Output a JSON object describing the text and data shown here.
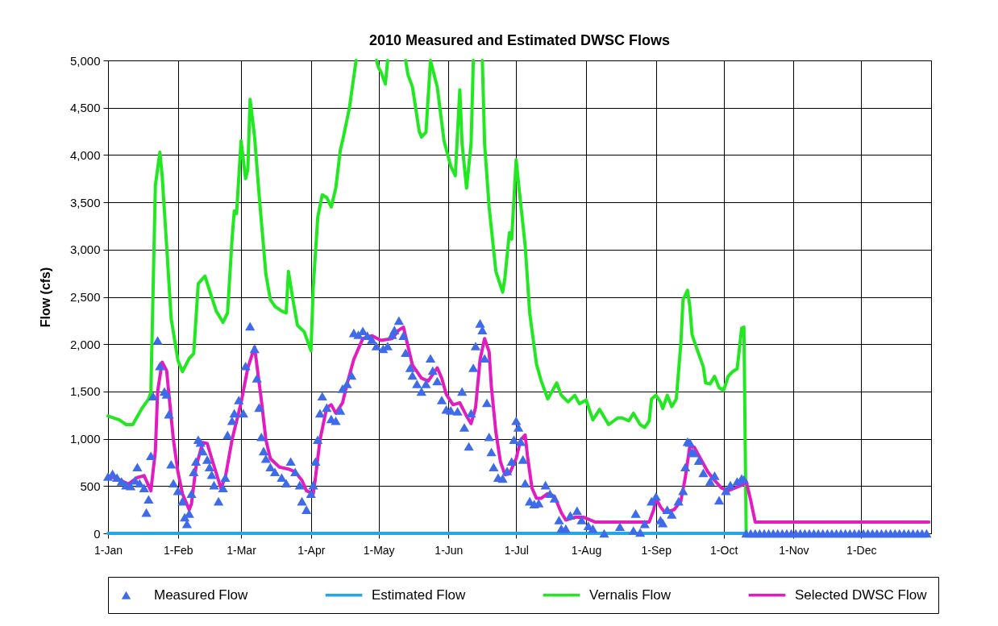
{
  "chart_data": {
    "type": "line",
    "title": "2010 Measured and Estimated DWSC Flows",
    "ylabel": "Flow (cfs)",
    "xlim": [
      "2010-01-01",
      "2011-01-01"
    ],
    "xticks": [
      {
        "value": "2010-01-01",
        "label": "1-Jan"
      },
      {
        "value": "2010-02-01",
        "label": "1-Feb"
      },
      {
        "value": "2010-03-01",
        "label": "1-Mar"
      },
      {
        "value": "2010-04-01",
        "label": "1-Apr"
      },
      {
        "value": "2010-05-01",
        "label": "1-May"
      },
      {
        "value": "2010-06-01",
        "label": "1-Jun"
      },
      {
        "value": "2010-07-01",
        "label": "1-Jul"
      },
      {
        "value": "2010-08-01",
        "label": "1-Aug"
      },
      {
        "value": "2010-09-01",
        "label": "1-Sep"
      },
      {
        "value": "2010-10-01",
        "label": "1-Oct"
      },
      {
        "value": "2010-11-01",
        "label": "1-Nov"
      },
      {
        "value": "2010-12-01",
        "label": "1-Dec"
      }
    ],
    "ylim": [
      0,
      5000
    ],
    "yticks": [
      0,
      500,
      {
        "value": 1000,
        "label": "1,000"
      },
      {
        "value": 1500,
        "label": "1,500"
      },
      {
        "value": 2000,
        "label": "2,000"
      },
      {
        "value": 2500,
        "label": "2,500"
      },
      {
        "value": 3000,
        "label": "3,000"
      },
      {
        "value": 3500,
        "label": "3,500"
      },
      {
        "value": 4000,
        "label": "4,000"
      },
      {
        "value": 4500,
        "label": "4,500"
      },
      {
        "value": 5000,
        "label": "5,000"
      }
    ],
    "grid": true,
    "legend": "bottom",
    "series": [
      {
        "name": "Measured Flow",
        "type": "scatter",
        "marker": "triangle",
        "color": "#3d6bea",
        "x": [
          "2010-01-01",
          "2010-01-03",
          "2010-01-05",
          "2010-01-07",
          "2010-01-09",
          "2010-01-11",
          "2010-01-13",
          "2010-01-14",
          "2010-01-15",
          "2010-01-17",
          "2010-01-18",
          "2010-01-19",
          "2010-01-20",
          "2010-01-21",
          "2010-01-23",
          "2010-01-24",
          "2010-01-26",
          "2010-01-27",
          "2010-01-28",
          "2010-01-29",
          "2010-01-30",
          "2010-02-01",
          "2010-02-03",
          "2010-02-04",
          "2010-02-05",
          "2010-02-06",
          "2010-02-07",
          "2010-02-08",
          "2010-02-09",
          "2010-02-10",
          "2010-02-11",
          "2010-02-12",
          "2010-02-14",
          "2010-02-15",
          "2010-02-16",
          "2010-02-17",
          "2010-02-19",
          "2010-02-21",
          "2010-02-22",
          "2010-02-23",
          "2010-02-25",
          "2010-02-26",
          "2010-02-28",
          "2010-03-02",
          "2010-03-03",
          "2010-03-05",
          "2010-03-07",
          "2010-03-08",
          "2010-03-09",
          "2010-03-10",
          "2010-03-11",
          "2010-03-12",
          "2010-03-14",
          "2010-03-16",
          "2010-03-19",
          "2010-03-21",
          "2010-03-23",
          "2010-03-25",
          "2010-03-27",
          "2010-03-28",
          "2010-03-30",
          "2010-04-01",
          "2010-04-02",
          "2010-04-03",
          "2010-04-04",
          "2010-04-05",
          "2010-04-06",
          "2010-04-08",
          "2010-04-10",
          "2010-04-12",
          "2010-04-14",
          "2010-04-15",
          "2010-04-17",
          "2010-04-19",
          "2010-04-20",
          "2010-04-22",
          "2010-04-24",
          "2010-04-26",
          "2010-04-28",
          "2010-04-30",
          "2010-05-03",
          "2010-05-05",
          "2010-05-07",
          "2010-05-08",
          "2010-05-10",
          "2010-05-12",
          "2010-05-13",
          "2010-05-15",
          "2010-05-16",
          "2010-05-18",
          "2010-05-20",
          "2010-05-22",
          "2010-05-24",
          "2010-05-25",
          "2010-05-27",
          "2010-05-29",
          "2010-05-31",
          "2010-06-02",
          "2010-06-05",
          "2010-06-07",
          "2010-06-08",
          "2010-06-10",
          "2010-06-11",
          "2010-06-12",
          "2010-06-13",
          "2010-06-15",
          "2010-06-16",
          "2010-06-17",
          "2010-06-18",
          "2010-06-19",
          "2010-06-20",
          "2010-06-21",
          "2010-06-23",
          "2010-06-25",
          "2010-06-27",
          "2010-06-29",
          "2010-06-30",
          "2010-07-01",
          "2010-07-02",
          "2010-07-03",
          "2010-07-04",
          "2010-07-05",
          "2010-07-07",
          "2010-07-09",
          "2010-07-11",
          "2010-07-14",
          "2010-07-16",
          "2010-07-18",
          "2010-07-20",
          "2010-07-21",
          "2010-07-23",
          "2010-07-25",
          "2010-07-28",
          "2010-07-30",
          "2010-08-02",
          "2010-08-04",
          "2010-08-09",
          "2010-08-16",
          "2010-08-22",
          "2010-08-23",
          "2010-08-25",
          "2010-08-27",
          "2010-08-30",
          "2010-09-01",
          "2010-09-03",
          "2010-09-04",
          "2010-09-06",
          "2010-09-08",
          "2010-09-11",
          "2010-09-13",
          "2010-09-14",
          "2010-09-15",
          "2010-09-16",
          "2010-09-17",
          "2010-09-18",
          "2010-09-20",
          "2010-09-22",
          "2010-09-25",
          "2010-09-27",
          "2010-09-29",
          "2010-10-02",
          "2010-10-04",
          "2010-10-07",
          "2010-10-09",
          "2010-10-10",
          "2010-10-11",
          "2010-10-13",
          "2010-10-15",
          "2010-10-17",
          "2010-10-19",
          "2010-10-21",
          "2010-10-23",
          "2010-10-25",
          "2010-10-27",
          "2010-10-29",
          "2010-10-31",
          "2010-11-02",
          "2010-11-04",
          "2010-11-06",
          "2010-11-08",
          "2010-11-10",
          "2010-11-12",
          "2010-11-14",
          "2010-11-16",
          "2010-11-18",
          "2010-11-20",
          "2010-11-22",
          "2010-11-24",
          "2010-11-26",
          "2010-11-28",
          "2010-11-30",
          "2010-12-02",
          "2010-12-04",
          "2010-12-06",
          "2010-12-08",
          "2010-12-10",
          "2010-12-12",
          "2010-12-14",
          "2010-12-16",
          "2010-12-18",
          "2010-12-20",
          "2010-12-22",
          "2010-12-24",
          "2010-12-26",
          "2010-12-28",
          "2010-12-30"
        ],
        "values": [
          600,
          630,
          590,
          550,
          510,
          500,
          560,
          700,
          530,
          480,
          220,
          360,
          820,
          1450,
          2040,
          1770,
          1500,
          1470,
          1260,
          730,
          530,
          450,
          340,
          170,
          100,
          210,
          420,
          650,
          760,
          990,
          960,
          870,
          780,
          700,
          620,
          510,
          340,
          480,
          590,
          1040,
          1190,
          1270,
          1410,
          1270,
          1770,
          2190,
          1950,
          1640,
          1330,
          1020,
          870,
          790,
          700,
          650,
          590,
          530,
          760,
          650,
          510,
          340,
          250,
          420,
          510,
          760,
          990,
          1270,
          1450,
          1330,
          1210,
          1190,
          1300,
          1530,
          1580,
          1670,
          2120,
          2100,
          2140,
          2090,
          2050,
          1980,
          1950,
          1980,
          2100,
          2150,
          2250,
          2090,
          1910,
          1750,
          1670,
          1580,
          1500,
          1580,
          1850,
          1720,
          1610,
          1410,
          1310,
          1300,
          1290,
          1500,
          1120,
          920,
          1270,
          1750,
          1980,
          2220,
          2150,
          1850,
          1380,
          1020,
          860,
          700,
          590,
          580,
          660,
          760,
          990,
          1190,
          1120,
          970,
          780,
          530,
          340,
          310,
          320,
          510,
          420,
          370,
          140,
          50,
          50,
          190,
          240,
          140,
          80,
          50,
          0,
          70,
          30,
          210,
          10,
          100,
          340,
          390,
          140,
          110,
          250,
          200,
          340,
          450,
          700,
          970,
          960,
          860,
          850,
          770,
          640,
          550,
          610,
          350,
          450,
          510,
          550,
          580,
          570,
          0,
          0,
          0,
          0,
          0,
          0,
          0,
          0,
          0,
          0,
          0,
          0,
          0,
          0,
          0,
          0,
          0,
          0,
          0,
          0,
          0,
          0,
          0,
          0,
          0,
          0,
          0,
          0,
          0,
          0,
          0,
          0,
          0,
          0,
          0,
          0,
          0,
          0,
          0,
          0,
          0
        ]
      },
      {
        "name": "Estimated Flow",
        "color": "#20a8e8",
        "x": [
          "2010-01-01",
          "2010-10-11"
        ],
        "values": [
          0,
          0
        ]
      },
      {
        "name": "Vernalis Flow",
        "color": "#22e822",
        "x": [
          "2010-01-01",
          "2010-01-06",
          "2010-01-09",
          "2010-01-12",
          "2010-01-16",
          "2010-01-19",
          "2010-01-20",
          "2010-01-22",
          "2010-01-24",
          "2010-01-25",
          "2010-01-27",
          "2010-01-29",
          "2010-02-01",
          "2010-02-03",
          "2010-02-06",
          "2010-02-08",
          "2010-02-10",
          "2010-02-13",
          "2010-02-15",
          "2010-02-18",
          "2010-02-21",
          "2010-02-23",
          "2010-02-25",
          "2010-02-26",
          "2010-02-27",
          "2010-03-01",
          "2010-03-03",
          "2010-03-04",
          "2010-03-05",
          "2010-03-07",
          "2010-03-09",
          "2010-03-12",
          "2010-03-14",
          "2010-03-16",
          "2010-03-19",
          "2010-03-21",
          "2010-03-22",
          "2010-03-24",
          "2010-03-26",
          "2010-03-29",
          "2010-04-01",
          "2010-04-02",
          "2010-04-04",
          "2010-04-06",
          "2010-04-08",
          "2010-04-10",
          "2010-04-12",
          "2010-04-14",
          "2010-04-15",
          "2010-04-18",
          "2010-04-20",
          "2010-04-21",
          "2010-04-26",
          "2010-04-30",
          "2010-05-01",
          "2010-05-02",
          "2010-05-04",
          "2010-05-05",
          "2010-05-09",
          "2010-05-13",
          "2010-05-14",
          "2010-05-16",
          "2010-05-19",
          "2010-05-20",
          "2010-05-22",
          "2010-05-24",
          "2010-05-27",
          "2010-05-30",
          "2010-06-02",
          "2010-06-04",
          "2010-06-06",
          "2010-06-07",
          "2010-06-09",
          "2010-06-11",
          "2010-06-12",
          "2010-06-14",
          "2010-06-16",
          "2010-06-17",
          "2010-06-19",
          "2010-06-22",
          "2010-06-25",
          "2010-06-26",
          "2010-06-28",
          "2010-06-29",
          "2010-07-01",
          "2010-07-02",
          "2010-07-05",
          "2010-07-07",
          "2010-07-10",
          "2010-07-12",
          "2010-07-15",
          "2010-07-19",
          "2010-07-21",
          "2010-07-24",
          "2010-07-27",
          "2010-07-29",
          "2010-08-01",
          "2010-08-04",
          "2010-08-07",
          "2010-08-11",
          "2010-08-15",
          "2010-08-17",
          "2010-08-20",
          "2010-08-22",
          "2010-08-25",
          "2010-08-27",
          "2010-08-29",
          "2010-08-30",
          "2010-09-01",
          "2010-09-03",
          "2010-09-04",
          "2010-09-06",
          "2010-09-08",
          "2010-09-10",
          "2010-09-12",
          "2010-09-13",
          "2010-09-15",
          "2010-09-16",
          "2010-09-17",
          "2010-09-19",
          "2010-09-22",
          "2010-09-23",
          "2010-09-25",
          "2010-09-27",
          "2010-09-29",
          "2010-10-01",
          "2010-10-03",
          "2010-10-05",
          "2010-10-07",
          "2010-10-09",
          "2010-10-10",
          "2010-10-11"
        ],
        "values": [
          1240,
          1200,
          1150,
          1150,
          1320,
          1420,
          1490,
          3680,
          4030,
          3780,
          3040,
          2270,
          1830,
          1710,
          1850,
          1900,
          2640,
          2720,
          2570,
          2350,
          2230,
          2330,
          3110,
          3410,
          3380,
          4150,
          3750,
          3850,
          4590,
          4190,
          3580,
          2740,
          2470,
          2400,
          2350,
          2330,
          2770,
          2470,
          2200,
          2130,
          1930,
          2600,
          3340,
          3580,
          3550,
          3450,
          3650,
          4050,
          4150,
          4490,
          4830,
          5000,
          null,
          5000,
          4920,
          4880,
          4750,
          5000,
          null,
          5000,
          4850,
          4720,
          4250,
          4190,
          4240,
          5000,
          4720,
          4150,
          3880,
          3780,
          4690,
          4120,
          3650,
          4120,
          5000,
          null,
          5000,
          4120,
          3450,
          2770,
          2550,
          2700,
          3180,
          3110,
          3950,
          3710,
          3040,
          2330,
          1790,
          1620,
          1420,
          1590,
          1460,
          1390,
          1460,
          1370,
          1410,
          1200,
          1310,
          1150,
          1220,
          1220,
          1190,
          1270,
          1150,
          1120,
          1190,
          1420,
          1460,
          1390,
          1320,
          1460,
          1340,
          1420,
          2000,
          2470,
          2570,
          2400,
          2100,
          1960,
          1760,
          1590,
          1580,
          1660,
          1540,
          1510,
          1660,
          1710,
          1740,
          2170,
          2180,
          0
        ]
      },
      {
        "name": "Selected DWSC Flow",
        "color": "#e31cc0",
        "x": [
          "2010-01-01",
          "2010-01-05",
          "2010-01-10",
          "2010-01-14",
          "2010-01-17",
          "2010-01-20",
          "2010-01-22",
          "2010-01-23",
          "2010-01-25",
          "2010-01-27",
          "2010-01-28",
          "2010-01-30",
          "2010-02-01",
          "2010-02-03",
          "2010-02-06",
          "2010-02-07",
          "2010-02-09",
          "2010-02-12",
          "2010-02-14",
          "2010-02-16",
          "2010-02-19",
          "2010-02-20",
          "2010-02-22",
          "2010-02-25",
          "2010-03-01",
          "2010-03-04",
          "2010-03-07",
          "2010-03-08",
          "2010-03-10",
          "2010-03-12",
          "2010-03-14",
          "2010-03-18",
          "2010-03-22",
          "2010-03-25",
          "2010-03-28",
          "2010-03-30",
          "2010-04-02",
          "2010-04-03",
          "2010-04-05",
          "2010-04-08",
          "2010-04-10",
          "2010-04-12",
          "2010-04-15",
          "2010-04-17",
          "2010-04-20",
          "2010-04-24",
          "2010-04-28",
          "2010-05-02",
          "2010-05-07",
          "2010-05-10",
          "2010-05-12",
          "2010-05-14",
          "2010-05-16",
          "2010-05-20",
          "2010-05-23",
          "2010-05-27",
          "2010-05-29",
          "2010-05-31",
          "2010-06-03",
          "2010-06-06",
          "2010-06-09",
          "2010-06-11",
          "2010-06-13",
          "2010-06-15",
          "2010-06-17",
          "2010-06-19",
          "2010-06-20",
          "2010-06-22",
          "2010-06-24",
          "2010-06-26",
          "2010-06-28",
          "2010-07-01",
          "2010-07-03",
          "2010-07-05",
          "2010-07-06",
          "2010-07-08",
          "2010-07-10",
          "2010-07-12",
          "2010-07-15",
          "2010-07-18",
          "2010-07-21",
          "2010-07-23",
          "2010-07-27",
          "2010-07-31",
          "2010-08-03",
          "2010-08-05",
          "2010-08-29",
          "2010-08-31",
          "2010-09-01",
          "2010-09-03",
          "2010-09-05",
          "2010-09-09",
          "2010-09-12",
          "2010-09-14",
          "2010-09-16",
          "2010-09-18",
          "2010-09-21",
          "2010-09-24",
          "2010-09-27",
          "2010-09-30",
          "2010-10-03",
          "2010-10-06",
          "2010-10-09",
          "2010-10-11",
          "2010-10-13",
          "2010-10-15",
          "2010-12-31"
        ],
        "values": [
          600,
          580,
          520,
          590,
          610,
          450,
          870,
          1500,
          1810,
          1720,
          1470,
          990,
          650,
          420,
          250,
          310,
          700,
          960,
          950,
          790,
          560,
          480,
          590,
          990,
          1380,
          1750,
          1970,
          1780,
          1410,
          990,
          790,
          700,
          680,
          650,
          560,
          450,
          420,
          590,
          990,
          1330,
          1360,
          1270,
          1380,
          1580,
          1840,
          2060,
          2090,
          2040,
          2060,
          2150,
          2180,
          1980,
          1780,
          1640,
          1610,
          1750,
          1640,
          1470,
          1360,
          1380,
          1240,
          1160,
          1330,
          1840,
          2060,
          1920,
          1550,
          1070,
          760,
          620,
          630,
          790,
          990,
          1040,
          820,
          480,
          370,
          370,
          420,
          390,
          220,
          140,
          170,
          170,
          140,
          120,
          120,
          250,
          370,
          280,
          220,
          250,
          340,
          590,
          920,
          910,
          780,
          650,
          560,
          480,
          450,
          480,
          510,
          550,
          350,
          120,
          120
        ]
      }
    ]
  }
}
